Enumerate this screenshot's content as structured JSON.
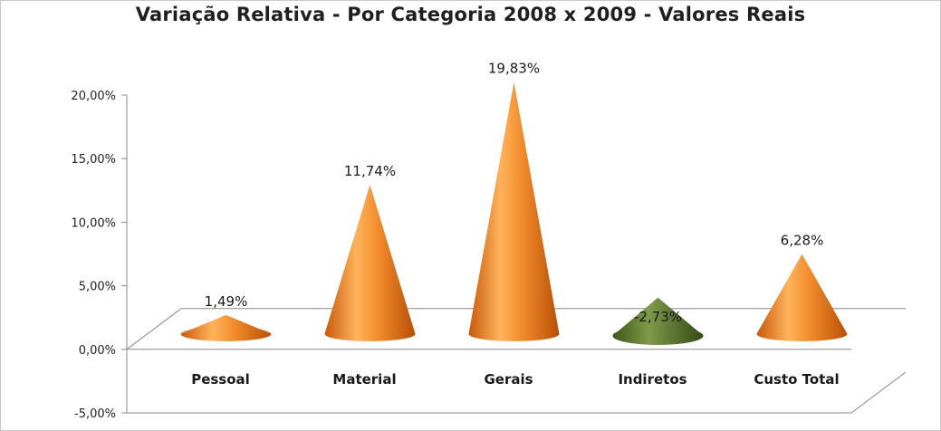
{
  "chart_data": {
    "type": "bar",
    "title": "Variação Relativa - Por Categoria 2008 x 2009 - Valores Reais",
    "categories": [
      "Pessoal",
      "Material",
      "Gerais",
      "Indiretos",
      "Custo Total"
    ],
    "values": [
      1.49,
      11.74,
      19.83,
      -2.73,
      6.28
    ],
    "data_labels": [
      "1,49%",
      "11,74%",
      "19,83%",
      "-2,73%",
      "6,28%"
    ],
    "ylim": [
      -5,
      20
    ],
    "y_ticks": [
      20,
      15,
      10,
      5,
      0,
      -5
    ],
    "y_tick_labels": [
      "20,00%",
      "15,00%",
      "10,00%",
      "5,00%",
      "0,00%",
      "-5,00%"
    ],
    "xlabel": "",
    "ylabel": "",
    "grid": false,
    "legend": "none",
    "colors": {
      "positive": "#e8751a",
      "positive_light": "#ffb766",
      "positive_dark": "#b84f06",
      "negative": "#4f6b25",
      "negative_light": "#7f9a4a",
      "negative_dark": "#344a15"
    }
  }
}
